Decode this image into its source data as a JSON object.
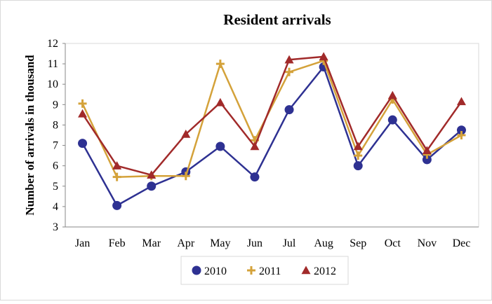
{
  "chart_data": {
    "type": "line",
    "title": "Resident arrivals",
    "xlabel": "",
    "ylabel": "Number of arrivals in thousand",
    "categories": [
      "Jan",
      "Feb",
      "Mar",
      "Apr",
      "May",
      "Jun",
      "Jul",
      "Aug",
      "Sep",
      "Oct",
      "Nov",
      "Dec"
    ],
    "ylim": [
      3,
      12
    ],
    "yticks": [
      3,
      4,
      5,
      6,
      7,
      8,
      9,
      10,
      11,
      12
    ],
    "grid": false,
    "legend": "bottom",
    "series": [
      {
        "name": "2010",
        "color": "#2e3192",
        "marker": "circle",
        "values": [
          7.1,
          4.05,
          5.0,
          5.7,
          6.95,
          5.45,
          8.75,
          10.85,
          6.0,
          8.25,
          6.3,
          7.75
        ]
      },
      {
        "name": "2011",
        "color": "#d4a23a",
        "marker": "plus",
        "values": [
          9.05,
          5.45,
          5.5,
          5.5,
          11.0,
          7.25,
          10.6,
          11.15,
          6.5,
          9.25,
          6.55,
          7.5
        ]
      },
      {
        "name": "2012",
        "color": "#a12a2a",
        "marker": "triangle",
        "values": [
          8.55,
          6.0,
          5.55,
          7.55,
          9.1,
          6.95,
          11.2,
          11.35,
          6.95,
          9.45,
          6.75,
          9.15
        ]
      }
    ]
  }
}
